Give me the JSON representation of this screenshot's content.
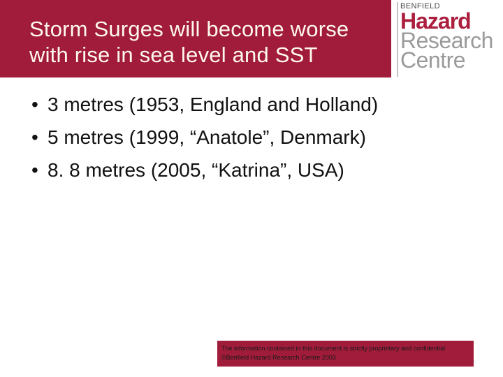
{
  "slide": {
    "title_lines": [
      "Storm Surges will become worse",
      "with rise in sea level and SST"
    ],
    "bullet_char": "•",
    "bullets": [
      "3 metres (1953, England and Holland)",
      "5 metres (1999, “Anatole”, Denmark)",
      "8. 8 metres (2005, “Katrina”, USA)"
    ]
  },
  "logo": {
    "brand": "BENFIELD",
    "line1": "Hazard",
    "line2": "Research",
    "line3": "Centre"
  },
  "footer": {
    "line1": "The information contained in this document is strictly proprietary and confidential",
    "line2": "©Benfield Hazard Research Centre 2003"
  },
  "colors": {
    "header_crimson": "#A11C3B",
    "logo_crimson": "#AC1F3E",
    "logo_gray": "#9A9A9A",
    "title_text": "#FFF8ED",
    "body_text": "#111111",
    "footer_text": "#1A1A1A"
  }
}
